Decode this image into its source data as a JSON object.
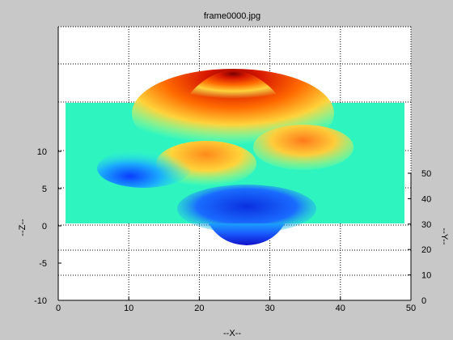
{
  "chart_data": {
    "type": "surface",
    "title": "frame0000.jpg",
    "xlabel": "--X--",
    "ylabel": "--Y--",
    "zlabel": "--Z--",
    "xlim": [
      0,
      50
    ],
    "ylim": [
      0,
      50
    ],
    "zlim": [
      -10,
      10
    ],
    "x_ticks": [
      0,
      10,
      20,
      30,
      40,
      50
    ],
    "y_ticks": [
      0,
      10,
      20,
      30,
      40,
      50
    ],
    "z_ticks": [
      -10,
      -5,
      0,
      5,
      10
    ],
    "x_tick_labels": [
      "0",
      "10",
      "20",
      "30",
      "40",
      "50"
    ],
    "y_tick_labels": [
      "0",
      "10",
      "20",
      "30",
      "40",
      "50"
    ],
    "z_tick_labels": [
      "-10",
      "-5",
      "0",
      "5",
      "10"
    ],
    "grid": true,
    "colormap": "jet",
    "surface_features": [
      {
        "kind": "peak",
        "x": 25,
        "z": 21
      },
      {
        "kind": "peak",
        "x": 35,
        "z": 11
      },
      {
        "kind": "peak",
        "x": 22,
        "z": 10
      },
      {
        "kind": "valley",
        "x": 12,
        "z": 6
      },
      {
        "kind": "valley",
        "x": 27,
        "z": -3
      }
    ]
  }
}
